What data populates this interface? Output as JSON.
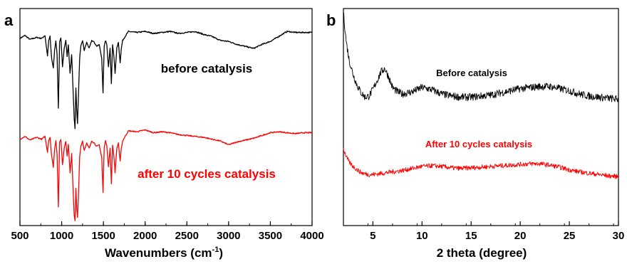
{
  "chart_data": [
    {
      "type": "line",
      "panel_label": "a",
      "xlabel": "Wavenumbers (cm",
      "xlabel_sup": "-1",
      "xlabel_close": ")",
      "xlim": [
        500,
        4000
      ],
      "x_ticks": [
        "500",
        "1000",
        "1500",
        "2000",
        "2500",
        "3000",
        "3500",
        "4000"
      ],
      "ylabel": "",
      "grid": false,
      "series": [
        {
          "name": "before catalysis",
          "color": "#000000",
          "x": [
            500,
            560,
            620,
            700,
            760,
            800,
            830,
            845,
            860,
            880,
            900,
            915,
            930,
            945,
            960,
            975,
            990,
            1010,
            1030,
            1050,
            1065,
            1080,
            1100,
            1120,
            1140,
            1150,
            1160,
            1170,
            1180,
            1190,
            1200,
            1215,
            1230,
            1250,
            1270,
            1300,
            1330,
            1360,
            1390,
            1420,
            1450,
            1480,
            1495,
            1510,
            1525,
            1540,
            1560,
            1580,
            1595,
            1610,
            1625,
            1640,
            1660,
            1680,
            1700,
            1715,
            1730,
            1760,
            1800,
            1900,
            2000,
            2100,
            2200,
            2300,
            2400,
            2500,
            2600,
            2700,
            2800,
            2900,
            3000,
            3100,
            3200,
            3300,
            3400,
            3500,
            3600,
            3700,
            3800,
            3900,
            4000
          ],
          "y": [
            0.9,
            0.93,
            0.89,
            0.91,
            0.9,
            0.93,
            0.72,
            0.88,
            0.92,
            0.7,
            0.6,
            0.78,
            0.88,
            0.74,
            0.2,
            0.86,
            0.9,
            0.62,
            0.8,
            0.88,
            0.72,
            0.84,
            0.55,
            0.74,
            0.3,
            0.1,
            0.0,
            0.4,
            0.18,
            0.05,
            0.3,
            0.7,
            0.82,
            0.88,
            0.78,
            0.86,
            0.8,
            0.88,
            0.86,
            0.82,
            0.84,
            0.7,
            0.35,
            0.82,
            0.88,
            0.84,
            0.62,
            0.8,
            0.45,
            0.84,
            0.72,
            0.55,
            0.8,
            0.86,
            0.66,
            0.8,
            0.88,
            0.92,
            0.97,
            0.96,
            0.97,
            0.95,
            0.96,
            0.97,
            0.95,
            0.96,
            0.97,
            0.94,
            0.92,
            0.88,
            0.87,
            0.84,
            0.82,
            0.8,
            0.84,
            0.87,
            0.92,
            0.97,
            0.96,
            0.96,
            0.96
          ]
        },
        {
          "name": "after 10 cycles catalysis",
          "color": "#ff0000",
          "x": [
            500,
            560,
            620,
            700,
            760,
            800,
            830,
            845,
            860,
            880,
            900,
            915,
            930,
            945,
            960,
            975,
            990,
            1010,
            1030,
            1050,
            1065,
            1080,
            1100,
            1120,
            1140,
            1150,
            1160,
            1170,
            1180,
            1190,
            1200,
            1215,
            1230,
            1250,
            1270,
            1300,
            1330,
            1360,
            1390,
            1420,
            1450,
            1480,
            1495,
            1510,
            1525,
            1540,
            1560,
            1580,
            1595,
            1610,
            1625,
            1640,
            1660,
            1680,
            1700,
            1715,
            1730,
            1760,
            1800,
            1900,
            2000,
            2100,
            2200,
            2300,
            2400,
            2500,
            2600,
            2700,
            2800,
            2900,
            3000,
            3100,
            3200,
            3300,
            3400,
            3500,
            3600,
            3700,
            3800,
            3900,
            4000
          ],
          "y": [
            0.88,
            0.91,
            0.87,
            0.9,
            0.88,
            0.91,
            0.74,
            0.87,
            0.9,
            0.7,
            0.58,
            0.77,
            0.86,
            0.72,
            0.15,
            0.85,
            0.88,
            0.6,
            0.78,
            0.86,
            0.7,
            0.83,
            0.52,
            0.72,
            0.25,
            0.06,
            0.0,
            0.35,
            0.12,
            0.03,
            0.25,
            0.68,
            0.8,
            0.86,
            0.76,
            0.84,
            0.78,
            0.86,
            0.84,
            0.8,
            0.82,
            0.68,
            0.3,
            0.8,
            0.86,
            0.82,
            0.58,
            0.78,
            0.4,
            0.82,
            0.7,
            0.52,
            0.78,
            0.84,
            0.64,
            0.78,
            0.86,
            0.91,
            0.97,
            0.96,
            0.98,
            0.95,
            0.96,
            0.95,
            0.93,
            0.92,
            0.91,
            0.9,
            0.88,
            0.86,
            0.82,
            0.85,
            0.87,
            0.89,
            0.92,
            0.95,
            0.96,
            0.95,
            0.94,
            0.95,
            0.95
          ]
        }
      ],
      "annotations": [
        {
          "text": "before catalysis",
          "x": 2950,
          "color": "#000000"
        },
        {
          "text": "after 10 cycles catalysis",
          "x": 2950,
          "color": "#ff0000"
        }
      ]
    },
    {
      "type": "line",
      "panel_label": "b",
      "xlabel": "2 theta (degree)",
      "xlim": [
        2,
        30
      ],
      "x_ticks": [
        "5",
        "10",
        "15",
        "20",
        "25",
        "30"
      ],
      "ylabel": "",
      "grid": false,
      "series": [
        {
          "name": "Before catalysis",
          "color": "#000000",
          "x": [
            2.0,
            2.3,
            2.6,
            3.0,
            3.4,
            3.8,
            4.2,
            4.6,
            5.0,
            5.4,
            5.8,
            6.2,
            6.6,
            7.0,
            7.5,
            8.0,
            9.0,
            10.0,
            11.0,
            12.0,
            13.0,
            14.0,
            15.0,
            16.0,
            17.0,
            18.0,
            19.0,
            20.0,
            21.0,
            22.0,
            23.0,
            24.0,
            25.0,
            26.0,
            27.0,
            28.0,
            29.0,
            30.0
          ],
          "y": [
            1.0,
            0.72,
            0.55,
            0.42,
            0.32,
            0.25,
            0.21,
            0.22,
            0.28,
            0.36,
            0.44,
            0.48,
            0.4,
            0.3,
            0.26,
            0.24,
            0.26,
            0.3,
            0.28,
            0.24,
            0.22,
            0.21,
            0.21,
            0.22,
            0.23,
            0.25,
            0.27,
            0.29,
            0.3,
            0.31,
            0.31,
            0.29,
            0.27,
            0.24,
            0.22,
            0.21,
            0.2,
            0.19
          ]
        },
        {
          "name": "After 10 cycles catalysis",
          "color": "#ff0000",
          "x": [
            2.0,
            2.3,
            2.6,
            3.0,
            3.4,
            3.8,
            4.2,
            4.6,
            5.0,
            5.5,
            6.0,
            7.0,
            8.0,
            9.0,
            10.0,
            11.0,
            12.0,
            13.0,
            14.0,
            15.0,
            16.0,
            17.0,
            18.0,
            19.0,
            20.0,
            21.0,
            22.0,
            23.0,
            24.0,
            25.0,
            26.0,
            27.0,
            28.0,
            29.0,
            30.0
          ],
          "y": [
            0.64,
            0.52,
            0.44,
            0.38,
            0.33,
            0.29,
            0.27,
            0.26,
            0.26,
            0.27,
            0.28,
            0.3,
            0.32,
            0.35,
            0.38,
            0.39,
            0.38,
            0.36,
            0.35,
            0.36,
            0.37,
            0.38,
            0.39,
            0.4,
            0.41,
            0.42,
            0.42,
            0.4,
            0.37,
            0.33,
            0.3,
            0.28,
            0.26,
            0.24,
            0.23
          ]
        }
      ],
      "annotations": [
        {
          "text": "Before catalysis",
          "x": 16.5,
          "color": "#000000"
        },
        {
          "text": "After 10 cycles catalysis",
          "x": 16.5,
          "color": "#ff0000"
        }
      ]
    }
  ]
}
